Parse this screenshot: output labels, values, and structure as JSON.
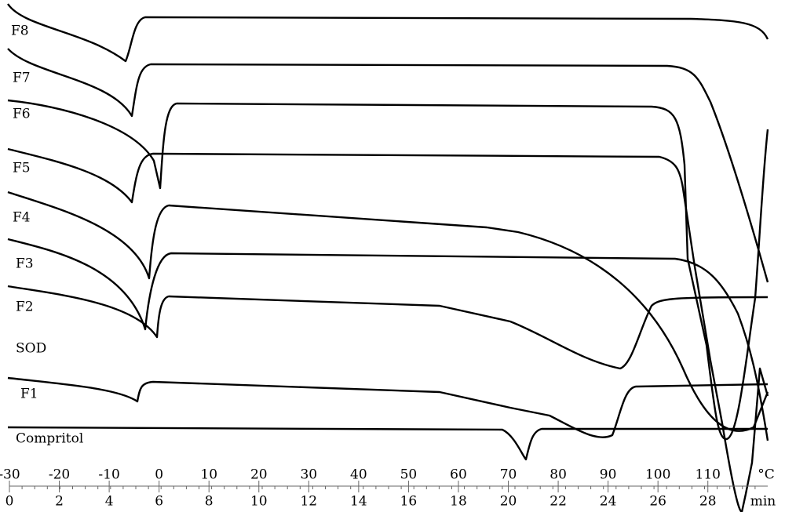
{
  "labels": [
    "F8",
    "F7",
    "F6",
    "F5",
    "F4",
    "F3",
    "F2",
    "SOD",
    "F1",
    "Compritol"
  ],
  "axis_celsius": {
    "unit": "°C",
    "lim": [
      -30,
      122
    ],
    "ticks": [
      -30,
      -20,
      -10,
      0,
      10,
      20,
      30,
      40,
      50,
      60,
      70,
      80,
      90,
      100,
      110
    ]
  },
  "axis_minutes": {
    "unit": "min",
    "lim": [
      0,
      30.4
    ],
    "ticks": [
      0,
      2,
      4,
      6,
      8,
      10,
      12,
      14,
      16,
      18,
      20,
      22,
      24,
      26,
      28
    ]
  }
}
